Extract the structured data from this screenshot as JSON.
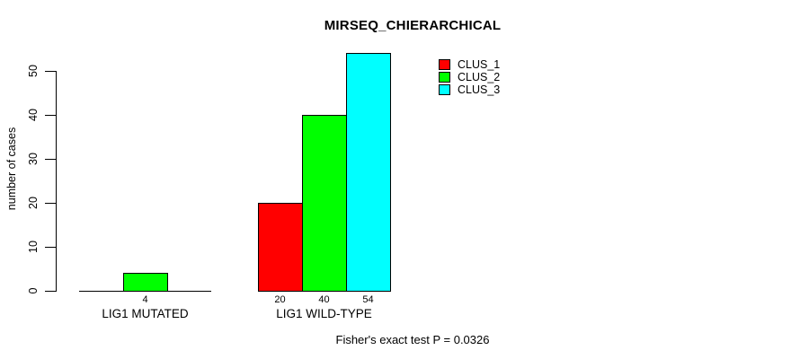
{
  "chart_data": {
    "type": "bar",
    "title": "MIRSEQ_CHIERARCHICAL",
    "ylabel": "number of cases",
    "xlabel": "",
    "ylim": [
      0,
      55
    ],
    "yticks": [
      "0",
      "10",
      "20",
      "30",
      "40",
      "50"
    ],
    "grid": false,
    "categories": [
      "LIG1 MUTATED",
      "LIG1 WILD-TYPE"
    ],
    "series": [
      {
        "name": "CLUS_1",
        "color": "#ff0000",
        "values": [
          0,
          20
        ]
      },
      {
        "name": "CLUS_2",
        "color": "#00ff00",
        "values": [
          4,
          40
        ]
      },
      {
        "name": "CLUS_3",
        "color": "#00ffff",
        "values": [
          0,
          54
        ]
      }
    ],
    "bar_value_labels": [
      [
        "",
        "4",
        ""
      ],
      [
        "20",
        "40",
        "54"
      ]
    ],
    "legend": {
      "position": "top-right",
      "entries": [
        "CLUS_1",
        "CLUS_2",
        "CLUS_3"
      ]
    },
    "footnote": "Fisher's exact test P = 0.0326"
  },
  "colors": {
    "background": "#ffffff",
    "axis": "#000000",
    "text": "#000000",
    "bar_border": "#000000"
  }
}
